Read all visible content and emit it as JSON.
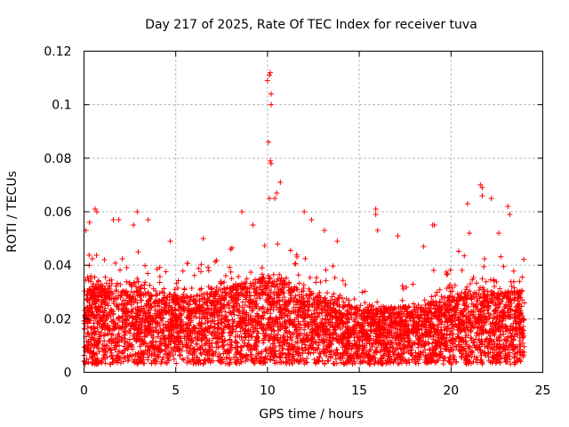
{
  "chart_data": {
    "type": "scatter",
    "title": "Day 217 of 2025, Rate Of TEC Index for receiver tuva",
    "xlabel": "GPS time / hours",
    "ylabel": "ROTI / TECUs",
    "xlim": [
      0,
      25
    ],
    "ylim": [
      0,
      0.12
    ],
    "xticks": [
      0,
      5,
      10,
      15,
      20,
      25
    ],
    "xtick_labels": [
      "0",
      "5",
      "10",
      "15",
      "20",
      "25"
    ],
    "yticks": [
      0,
      0.02,
      0.04,
      0.06,
      0.08,
      0.1,
      0.12
    ],
    "ytick_labels": [
      "0",
      "0.02",
      "0.04",
      "0.06",
      "0.08",
      "0.1",
      "0.12"
    ],
    "grid": true,
    "marker": "+",
    "series": [
      {
        "name": "ROTI",
        "color": "#ff0000",
        "outliers": [
          [
            10.0,
            0.109
          ],
          [
            10.1,
            0.111
          ],
          [
            10.15,
            0.112
          ],
          [
            10.2,
            0.104
          ],
          [
            10.2,
            0.1
          ],
          [
            10.05,
            0.086
          ],
          [
            10.15,
            0.079
          ],
          [
            10.2,
            0.078
          ],
          [
            10.7,
            0.071
          ],
          [
            10.5,
            0.067
          ],
          [
            10.4,
            0.065
          ],
          [
            10.1,
            0.065
          ],
          [
            21.6,
            0.07
          ],
          [
            21.7,
            0.069
          ],
          [
            21.7,
            0.066
          ],
          [
            22.2,
            0.065
          ],
          [
            23.1,
            0.062
          ],
          [
            23.2,
            0.059
          ],
          [
            20.9,
            0.063
          ],
          [
            0.6,
            0.061
          ],
          [
            0.7,
            0.06
          ],
          [
            2.9,
            0.06
          ],
          [
            3.5,
            0.057
          ],
          [
            8.6,
            0.06
          ],
          [
            12.0,
            0.06
          ],
          [
            15.9,
            0.061
          ],
          [
            15.9,
            0.059
          ],
          [
            19.0,
            0.055
          ],
          [
            19.1,
            0.055
          ],
          [
            17.1,
            0.051
          ],
          [
            0.1,
            0.053
          ],
          [
            0.3,
            0.056
          ],
          [
            1.6,
            0.057
          ],
          [
            1.9,
            0.057
          ],
          [
            12.4,
            0.057
          ],
          [
            13.1,
            0.053
          ],
          [
            16.0,
            0.053
          ],
          [
            4.7,
            0.049
          ],
          [
            21.0,
            0.052
          ],
          [
            22.6,
            0.052
          ],
          [
            18.5,
            0.047
          ],
          [
            2.7,
            0.055
          ],
          [
            9.2,
            0.055
          ],
          [
            6.5,
            0.05
          ],
          [
            13.8,
            0.049
          ]
        ],
        "hourly_upper_envelope": [
          0.05,
          0.048,
          0.045,
          0.046,
          0.044,
          0.043,
          0.042,
          0.044,
          0.047,
          0.046,
          0.05,
          0.048,
          0.045,
          0.042,
          0.04,
          0.036,
          0.033,
          0.032,
          0.034,
          0.038,
          0.044,
          0.048,
          0.047,
          0.046,
          0.044
        ],
        "hourly_median": [
          0.016,
          0.017,
          0.016,
          0.016,
          0.015,
          0.015,
          0.015,
          0.016,
          0.017,
          0.018,
          0.019,
          0.018,
          0.016,
          0.015,
          0.014,
          0.013,
          0.013,
          0.013,
          0.013,
          0.014,
          0.015,
          0.016,
          0.016,
          0.016,
          0.016
        ],
        "x_end": 24
      }
    ]
  }
}
